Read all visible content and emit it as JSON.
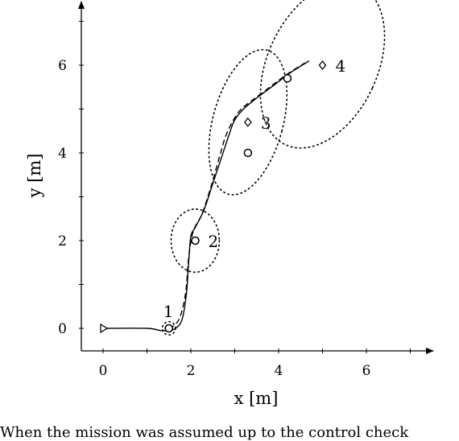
{
  "chart_data": {
    "type": "line",
    "title": "",
    "xlabel": "x [m]",
    "ylabel": "y [m]",
    "xlim": [
      -0.5,
      7.5
    ],
    "ylim": [
      -0.5,
      7.4
    ],
    "xticks": [
      0,
      2,
      4,
      6
    ],
    "yticks": [
      0,
      2,
      4,
      6
    ],
    "grid": false,
    "series": [
      {
        "style": "solid",
        "x": [
          0,
          1.0,
          1.3,
          1.5,
          1.65,
          1.8,
          1.9,
          1.95,
          2.0,
          2.1,
          2.3,
          2.5,
          2.7,
          2.9,
          3.0,
          3.2,
          3.5,
          3.9,
          4.3,
          4.7
        ],
        "y": [
          0,
          0,
          -0.05,
          -0.05,
          0,
          0.2,
          0.8,
          1.5,
          2.1,
          2.3,
          2.7,
          3.3,
          3.9,
          4.5,
          4.75,
          5.0,
          5.25,
          5.55,
          5.85,
          6.1
        ]
      },
      {
        "style": "dashed",
        "x": [
          1.5,
          1.6,
          1.75,
          1.88,
          1.95,
          2.05,
          2.25,
          2.45,
          2.65,
          2.8,
          3.0,
          3.15,
          3.4,
          3.8,
          4.2,
          4.6
        ],
        "y": [
          0,
          0.05,
          0.25,
          0.8,
          1.6,
          2.2,
          2.6,
          3.2,
          3.9,
          4.4,
          4.8,
          5.0,
          5.2,
          5.5,
          5.8,
          6.05
        ]
      }
    ],
    "markers": [
      {
        "label": "1",
        "x": 1.5,
        "y": 0,
        "kind": "circle",
        "ellipse": {
          "rx": 0.15,
          "ry": 0.15,
          "angle": 0
        }
      },
      {
        "label": "2",
        "x": 2.1,
        "y": 2.0,
        "kind": "circle",
        "ellipse": {
          "rx": 0.55,
          "ry": 0.72,
          "angle": 0
        }
      },
      {
        "label": "3",
        "x": 3.3,
        "y": 4.7,
        "kind": "diamond",
        "ellipse": {
          "rx": 0.8,
          "ry": 1.7,
          "angle": 15
        }
      },
      {
        "label": "4",
        "x": 5.0,
        "y": 6.0,
        "kind": "diamond",
        "ellipse": {
          "rx": 1.25,
          "ry": 2.0,
          "angle": 25
        }
      }
    ],
    "extra_circles": [
      {
        "x": 3.3,
        "y": 4.0
      },
      {
        "x": 4.2,
        "y": 5.7
      }
    ],
    "start_marker": {
      "x": 0,
      "y": 0,
      "kind": "triangle-right"
    }
  },
  "caption": "When the mission was assumed up to the control check"
}
